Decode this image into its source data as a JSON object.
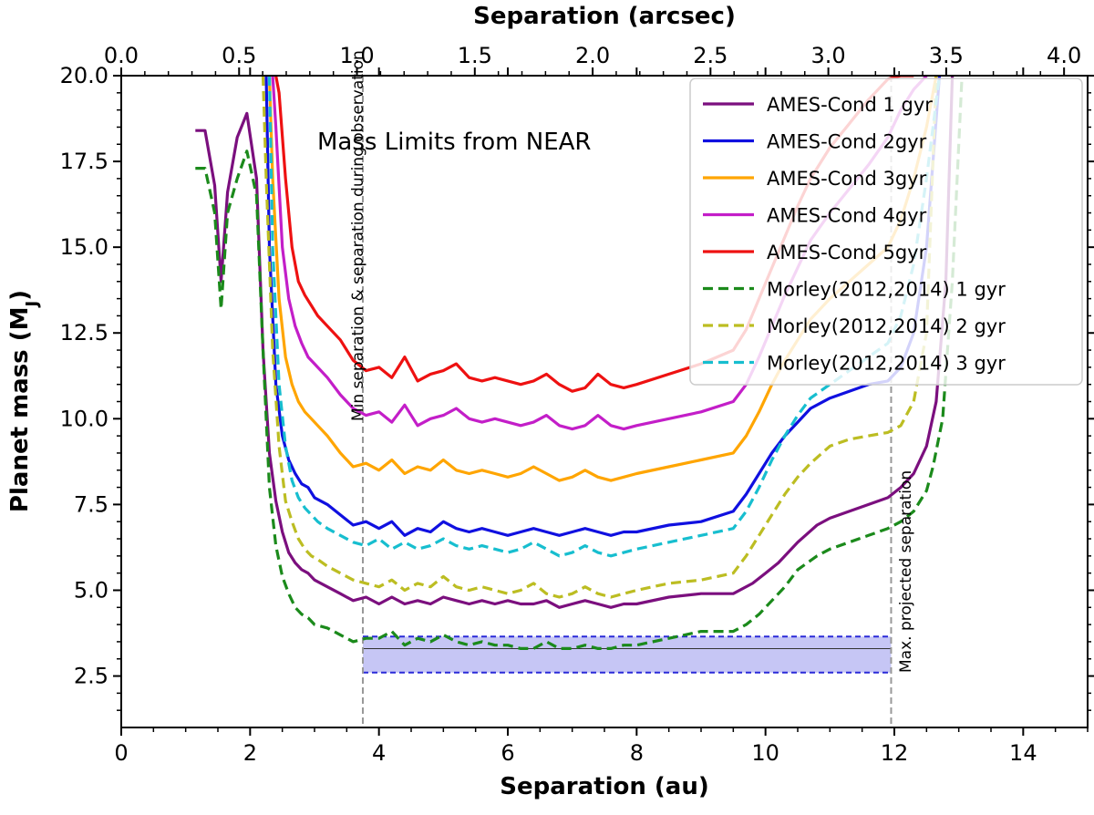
{
  "chart_data": {
    "type": "line",
    "title": "Mass Limits from NEAR",
    "xlabel": "Separation (au)",
    "x2label": "Separation (arcsec)",
    "ylabel": "Planet mass (M",
    "ylabel_sub": "J",
    "ylabel_close": ")",
    "xlim": [
      0,
      15
    ],
    "ylim": [
      1,
      20
    ],
    "x2lim": [
      0,
      4.1
    ],
    "xticks": [
      0,
      2,
      4,
      6,
      8,
      10,
      12,
      14
    ],
    "xtick_labels": [
      "0",
      "2",
      "4",
      "6",
      "8",
      "10",
      "12",
      "14"
    ],
    "yticks": [
      2.5,
      5.0,
      7.5,
      10.0,
      12.5,
      15.0,
      17.5,
      20.0
    ],
    "ytick_labels": [
      "2.5",
      "5.0",
      "7.5",
      "10.0",
      "12.5",
      "15.0",
      "17.5",
      "20.0"
    ],
    "x2ticks": [
      0.0,
      0.5,
      1.0,
      1.5,
      2.0,
      2.5,
      3.0,
      3.5,
      4.0
    ],
    "x2tick_labels": [
      "0.0",
      "0.5",
      "1.0",
      "1.5",
      "2.0",
      "2.5",
      "3.0",
      "3.5",
      "4.0"
    ],
    "legend_position": "top-right",
    "series": [
      {
        "name": "AMES-Cond 1 gyr",
        "color": "#7b0f7e",
        "dash": "solid",
        "x": [
          1.15,
          1.3,
          1.45,
          1.55,
          1.65,
          1.8,
          1.95,
          2.1,
          2.2,
          2.3,
          2.4,
          2.5,
          2.6,
          2.7,
          2.8,
          2.9,
          3.0,
          3.2,
          3.4,
          3.6,
          3.8,
          4.0,
          4.2,
          4.4,
          4.6,
          4.8,
          5.0,
          5.2,
          5.4,
          5.6,
          5.8,
          6.0,
          6.2,
          6.4,
          6.6,
          6.8,
          7.0,
          7.2,
          7.4,
          7.6,
          7.8,
          8.0,
          8.5,
          9.0,
          9.5,
          9.8,
          10.0,
          10.2,
          10.5,
          10.8,
          11.0,
          11.3,
          11.6,
          11.9,
          12.1,
          12.3,
          12.5,
          12.65,
          12.8,
          12.9
        ],
        "y": [
          18.4,
          18.4,
          16.8,
          14.0,
          16.6,
          18.2,
          18.9,
          17.0,
          12.0,
          9.0,
          7.6,
          6.7,
          6.1,
          5.8,
          5.6,
          5.5,
          5.3,
          5.1,
          4.9,
          4.7,
          4.8,
          4.6,
          4.8,
          4.6,
          4.7,
          4.6,
          4.8,
          4.7,
          4.6,
          4.7,
          4.6,
          4.7,
          4.6,
          4.6,
          4.7,
          4.5,
          4.6,
          4.7,
          4.6,
          4.5,
          4.6,
          4.6,
          4.8,
          4.9,
          4.9,
          5.2,
          5.5,
          5.8,
          6.4,
          6.9,
          7.1,
          7.3,
          7.5,
          7.7,
          8.0,
          8.4,
          9.2,
          10.5,
          14.0,
          20.0
        ]
      },
      {
        "name": "AMES-Cond 2gyr",
        "color": "#1010e0",
        "dash": "solid",
        "x": [
          2.25,
          2.3,
          2.4,
          2.5,
          2.6,
          2.7,
          2.8,
          2.9,
          3.0,
          3.2,
          3.4,
          3.6,
          3.8,
          4.0,
          4.2,
          4.4,
          4.6,
          4.8,
          5.0,
          5.2,
          5.4,
          5.6,
          5.8,
          6.0,
          6.2,
          6.4,
          6.6,
          6.8,
          7.0,
          7.2,
          7.4,
          7.6,
          7.8,
          8.0,
          8.5,
          9.0,
          9.5,
          9.7,
          9.9,
          10.1,
          10.3,
          10.5,
          10.7,
          11.0,
          11.3,
          11.6,
          11.9,
          12.1,
          12.3,
          12.5,
          12.7
        ],
        "y": [
          20.0,
          15.0,
          11.0,
          9.5,
          8.8,
          8.4,
          8.1,
          8.0,
          7.7,
          7.5,
          7.2,
          6.9,
          7.0,
          6.8,
          7.0,
          6.6,
          6.8,
          6.7,
          7.0,
          6.8,
          6.7,
          6.8,
          6.7,
          6.6,
          6.7,
          6.8,
          6.7,
          6.6,
          6.7,
          6.8,
          6.7,
          6.6,
          6.7,
          6.7,
          6.9,
          7.0,
          7.3,
          7.8,
          8.4,
          9.0,
          9.5,
          9.9,
          10.3,
          10.6,
          10.8,
          11.0,
          11.1,
          11.5,
          12.5,
          15.0,
          20.0
        ]
      },
      {
        "name": "AMES-Cond 3gyr",
        "color": "#ffa500",
        "dash": "solid",
        "x": [
          2.3,
          2.35,
          2.45,
          2.55,
          2.65,
          2.75,
          2.85,
          2.95,
          3.05,
          3.2,
          3.4,
          3.6,
          3.8,
          4.0,
          4.2,
          4.4,
          4.6,
          4.8,
          5.0,
          5.2,
          5.4,
          5.6,
          5.8,
          6.0,
          6.2,
          6.4,
          6.6,
          6.8,
          7.0,
          7.2,
          7.4,
          7.6,
          7.8,
          8.0,
          8.5,
          9.0,
          9.5,
          9.7,
          9.9,
          10.1,
          10.3,
          10.5,
          10.7,
          11.0,
          11.3,
          11.6,
          11.9,
          12.1,
          12.3,
          12.5,
          12.65
        ],
        "y": [
          20.0,
          17.0,
          13.5,
          11.8,
          11.0,
          10.5,
          10.2,
          10.0,
          9.8,
          9.5,
          9.0,
          8.6,
          8.7,
          8.5,
          8.8,
          8.4,
          8.6,
          8.5,
          8.8,
          8.5,
          8.4,
          8.5,
          8.4,
          8.3,
          8.4,
          8.6,
          8.4,
          8.2,
          8.3,
          8.5,
          8.3,
          8.2,
          8.3,
          8.4,
          8.6,
          8.8,
          9.0,
          9.5,
          10.2,
          11.0,
          11.7,
          12.3,
          12.9,
          13.5,
          14.0,
          14.5,
          15.0,
          15.8,
          17.0,
          18.5,
          20.0
        ]
      },
      {
        "name": "AMES-Cond 4gyr",
        "color": "#c31ec8",
        "dash": "solid",
        "x": [
          2.35,
          2.4,
          2.5,
          2.6,
          2.7,
          2.8,
          2.9,
          3.0,
          3.2,
          3.4,
          3.6,
          3.8,
          4.0,
          4.2,
          4.4,
          4.6,
          4.8,
          5.0,
          5.2,
          5.4,
          5.6,
          5.8,
          6.0,
          6.2,
          6.4,
          6.6,
          6.8,
          7.0,
          7.2,
          7.4,
          7.6,
          7.8,
          8.0,
          8.5,
          9.0,
          9.5,
          9.7,
          9.9,
          10.1,
          10.3,
          10.5,
          10.7,
          11.0,
          11.3,
          11.6,
          11.9,
          12.1,
          12.3,
          12.5
        ],
        "y": [
          20.0,
          18.5,
          15.0,
          13.5,
          12.7,
          12.2,
          11.8,
          11.6,
          11.2,
          10.7,
          10.3,
          10.1,
          10.2,
          9.9,
          10.4,
          9.8,
          10.0,
          10.1,
          10.3,
          10.0,
          9.9,
          10.0,
          9.9,
          9.8,
          9.9,
          10.1,
          9.8,
          9.7,
          9.8,
          10.1,
          9.8,
          9.7,
          9.8,
          10.0,
          10.2,
          10.5,
          11.0,
          11.8,
          12.7,
          13.6,
          14.4,
          15.2,
          16.0,
          16.7,
          17.4,
          18.2,
          19.0,
          19.6,
          20.0
        ]
      },
      {
        "name": "AMES-Cond 5gyr",
        "color": "#ee1111",
        "dash": "solid",
        "x": [
          2.4,
          2.45,
          2.55,
          2.65,
          2.75,
          2.85,
          2.95,
          3.05,
          3.2,
          3.4,
          3.6,
          3.8,
          4.0,
          4.2,
          4.4,
          4.6,
          4.8,
          5.0,
          5.2,
          5.4,
          5.6,
          5.8,
          6.0,
          6.2,
          6.4,
          6.6,
          6.8,
          7.0,
          7.2,
          7.4,
          7.6,
          7.8,
          8.0,
          8.5,
          9.0,
          9.5,
          9.7,
          9.9,
          10.1,
          10.3,
          10.5,
          10.7,
          11.0,
          11.3,
          11.6,
          11.9,
          12.1,
          12.3
        ],
        "y": [
          20.0,
          19.5,
          17.0,
          15.0,
          14.0,
          13.6,
          13.3,
          13.0,
          12.7,
          12.3,
          11.7,
          11.4,
          11.5,
          11.2,
          11.8,
          11.1,
          11.3,
          11.4,
          11.6,
          11.2,
          11.1,
          11.2,
          11.1,
          11.0,
          11.1,
          11.3,
          11.0,
          10.8,
          10.9,
          11.3,
          11.0,
          10.9,
          11.0,
          11.3,
          11.6,
          12.0,
          12.6,
          13.5,
          14.4,
          15.3,
          16.2,
          17.0,
          17.9,
          18.6,
          19.3,
          19.9,
          20.0,
          20.0
        ]
      },
      {
        "name": "Morley(2012,2014) 1 gyr",
        "color": "#1b8a1b",
        "dash": "dashed",
        "x": [
          1.15,
          1.3,
          1.45,
          1.55,
          1.65,
          1.8,
          1.95,
          2.1,
          2.2,
          2.3,
          2.4,
          2.5,
          2.6,
          2.7,
          2.8,
          2.9,
          3.0,
          3.2,
          3.4,
          3.6,
          3.8,
          4.0,
          4.2,
          4.4,
          4.6,
          4.8,
          5.0,
          5.2,
          5.4,
          5.6,
          5.8,
          6.0,
          6.2,
          6.4,
          6.6,
          6.8,
          7.0,
          7.2,
          7.4,
          7.6,
          7.8,
          8.0,
          8.5,
          9.0,
          9.5,
          9.7,
          9.9,
          10.1,
          10.3,
          10.5,
          10.8,
          11.0,
          11.3,
          11.6,
          11.9,
          12.1,
          12.3,
          12.5,
          12.6,
          12.75,
          12.9,
          13.05
        ],
        "y": [
          17.3,
          17.3,
          16.0,
          13.2,
          16.0,
          17.0,
          17.8,
          16.5,
          12.0,
          8.0,
          6.3,
          5.4,
          4.9,
          4.5,
          4.3,
          4.2,
          4.0,
          3.9,
          3.7,
          3.5,
          3.6,
          3.6,
          3.8,
          3.4,
          3.6,
          3.5,
          3.7,
          3.5,
          3.4,
          3.5,
          3.4,
          3.4,
          3.3,
          3.3,
          3.5,
          3.3,
          3.3,
          3.4,
          3.3,
          3.3,
          3.4,
          3.4,
          3.6,
          3.8,
          3.8,
          4.0,
          4.3,
          4.7,
          5.1,
          5.6,
          6.0,
          6.2,
          6.4,
          6.6,
          6.8,
          7.0,
          7.3,
          7.9,
          8.6,
          10.0,
          14.0,
          20.0
        ]
      },
      {
        "name": "Morley(2012,2014) 2 gyr",
        "color": "#bcbd22",
        "dash": "dashed",
        "x": [
          2.2,
          2.25,
          2.35,
          2.45,
          2.55,
          2.65,
          2.75,
          2.85,
          2.95,
          3.05,
          3.2,
          3.4,
          3.6,
          3.8,
          4.0,
          4.2,
          4.4,
          4.6,
          4.8,
          5.0,
          5.2,
          5.4,
          5.6,
          5.8,
          6.0,
          6.2,
          6.4,
          6.6,
          6.8,
          7.0,
          7.2,
          7.4,
          7.6,
          7.8,
          8.0,
          8.5,
          9.0,
          9.5,
          9.7,
          9.9,
          10.1,
          10.3,
          10.5,
          10.7,
          11.0,
          11.3,
          11.6,
          11.9,
          12.1,
          12.3,
          12.5,
          12.65
        ],
        "y": [
          20.0,
          17.0,
          12.0,
          9.2,
          7.6,
          7.0,
          6.5,
          6.2,
          6.0,
          5.9,
          5.7,
          5.5,
          5.3,
          5.2,
          5.1,
          5.3,
          5.0,
          5.2,
          5.1,
          5.4,
          5.1,
          5.0,
          5.1,
          5.0,
          4.9,
          5.0,
          5.2,
          4.9,
          4.8,
          4.9,
          5.1,
          4.9,
          4.8,
          4.9,
          5.0,
          5.2,
          5.3,
          5.5,
          6.0,
          6.6,
          7.2,
          7.8,
          8.3,
          8.7,
          9.2,
          9.4,
          9.5,
          9.6,
          9.8,
          10.5,
          12.5,
          20.0
        ]
      },
      {
        "name": "Morley(2012,2014) 3 gyr",
        "color": "#17becf",
        "dash": "dashed",
        "x": [
          2.3,
          2.35,
          2.45,
          2.55,
          2.65,
          2.75,
          2.85,
          2.95,
          3.05,
          3.2,
          3.4,
          3.6,
          3.8,
          4.0,
          4.2,
          4.4,
          4.6,
          4.8,
          5.0,
          5.2,
          5.4,
          5.6,
          5.8,
          6.0,
          6.2,
          6.4,
          6.6,
          6.8,
          7.0,
          7.2,
          7.4,
          7.6,
          7.8,
          8.0,
          8.5,
          9.0,
          9.5,
          9.7,
          9.9,
          10.1,
          10.3,
          10.5,
          10.7,
          11.0,
          11.3,
          11.6,
          11.9,
          12.1,
          12.3,
          12.5,
          12.7
        ],
        "y": [
          20.0,
          15.0,
          11.0,
          9.2,
          8.2,
          7.7,
          7.4,
          7.2,
          7.0,
          6.8,
          6.6,
          6.4,
          6.3,
          6.5,
          6.2,
          6.4,
          6.2,
          6.3,
          6.5,
          6.3,
          6.2,
          6.3,
          6.2,
          6.1,
          6.2,
          6.4,
          6.2,
          6.0,
          6.1,
          6.3,
          6.1,
          6.0,
          6.1,
          6.2,
          6.4,
          6.6,
          6.8,
          7.3,
          8.0,
          8.8,
          9.5,
          10.1,
          10.6,
          11.0,
          11.4,
          11.8,
          12.2,
          13.0,
          14.5,
          17.0,
          20.0
        ]
      }
    ],
    "vlines": [
      {
        "x": 3.75,
        "label": "Min separation & separation during observation"
      },
      {
        "x": 11.95,
        "label": "Max. projected separation"
      }
    ],
    "band": {
      "x0": 3.75,
      "x1": 11.95,
      "y_low": 2.6,
      "y_center": 3.3,
      "y_high": 3.65,
      "fill": "#c6c6f5",
      "edge": "#2a2ad8"
    }
  }
}
